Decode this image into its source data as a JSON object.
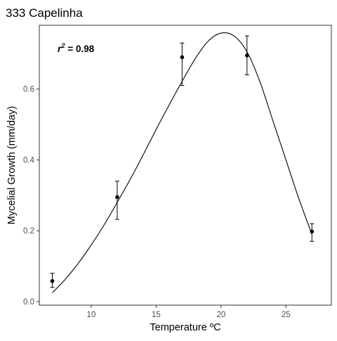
{
  "chart_data": {
    "type": "scatter",
    "title": "333 Capelinha",
    "xlabel": "Temperature ºC",
    "ylabel": "Mycelial Growth (mm/day)",
    "xlim": [
      6,
      28.5
    ],
    "ylim": [
      -0.01,
      0.78
    ],
    "x_ticks": [
      10,
      15,
      20,
      25
    ],
    "y_ticks": [
      0.0,
      0.2,
      0.4,
      0.6
    ],
    "x_tick_labels": [
      "10",
      "15",
      "20",
      "25"
    ],
    "y_tick_labels": [
      "0.0",
      "0.2",
      "0.4",
      "0.6"
    ],
    "grid": false,
    "series": [
      {
        "points": [
          {
            "x": 7,
            "y": 0.058,
            "err_low": 0.04,
            "err_high": 0.08
          },
          {
            "x": 12,
            "y": 0.295,
            "err_low": 0.232,
            "err_high": 0.34
          },
          {
            "x": 17,
            "y": 0.69,
            "err_low": 0.61,
            "err_high": 0.73
          },
          {
            "x": 22,
            "y": 0.695,
            "err_low": 0.64,
            "err_high": 0.75
          },
          {
            "x": 27,
            "y": 0.198,
            "err_low": 0.17,
            "err_high": 0.22
          }
        ]
      }
    ],
    "fit_curve": {
      "x": [
        7,
        8,
        9,
        10,
        11,
        12,
        13,
        14,
        15,
        16,
        17,
        18,
        19,
        20,
        21,
        22,
        23,
        24,
        25,
        26,
        27
      ],
      "y": [
        0.025,
        0.063,
        0.108,
        0.16,
        0.217,
        0.28,
        0.345,
        0.414,
        0.486,
        0.555,
        0.622,
        0.685,
        0.735,
        0.758,
        0.75,
        0.705,
        0.62,
        0.51,
        0.4,
        0.29,
        0.19
      ]
    },
    "annotation": {
      "symbol": "r",
      "superscript": "2",
      "value_text": " = 0.98"
    }
  }
}
